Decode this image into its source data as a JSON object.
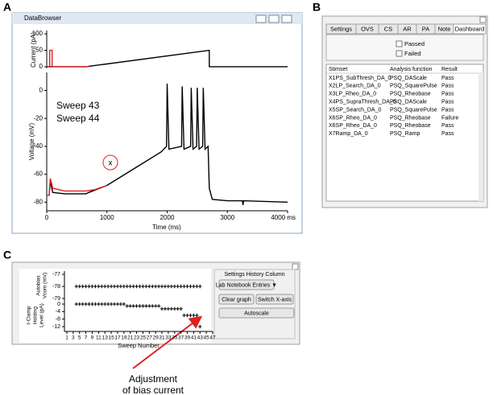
{
  "panel_labels": [
    "A",
    "B",
    "C"
  ],
  "data_browser": {
    "title": "DataBrowser",
    "current_chart": {
      "type": "line",
      "ylabel": "Current (pA)",
      "xlim": [
        0,
        4000
      ],
      "ylim": [
        -5,
        110
      ],
      "yticks": [
        0,
        50,
        100
      ],
      "series": [
        {
          "color": "#000000",
          "x": [
            0,
            650,
            2700,
            2700,
            4000
          ],
          "values": [
            0,
            0,
            50,
            0,
            0
          ]
        },
        {
          "color": "#e02020",
          "x": [
            0,
            50,
            50,
            90,
            90,
            650,
            700
          ],
          "values": [
            0,
            0,
            50,
            50,
            0,
            0,
            1
          ]
        }
      ]
    },
    "voltage_chart": {
      "type": "line",
      "xlabel": "Time (ms)",
      "ylabel": "Voltage (mV)",
      "xlim": [
        0,
        4000
      ],
      "ylim": [
        -85,
        13
      ],
      "xticks": [
        0,
        1000,
        2000,
        3000,
        {
          "value": 4000,
          "label": "4000 ms"
        }
      ],
      "yticks": [
        -80,
        -60,
        -40,
        -20,
        0
      ],
      "annotation": "x",
      "series": [
        {
          "name": "Sweep 44",
          "color": "#000000",
          "x": [
            0,
            40,
            60,
            100,
            300,
            650,
            700,
            1000,
            1300,
            1600,
            1900,
            1990,
            2000,
            2030,
            2240,
            2250,
            2280,
            2390,
            2400,
            2430,
            2490,
            2500,
            2530,
            2590,
            2600,
            2630,
            2680,
            2700,
            2750,
            3000,
            3250,
            3260,
            3270,
            4000
          ],
          "values": [
            -75,
            -75,
            -65,
            -73,
            -74,
            -74,
            -73,
            -68,
            -60,
            -52,
            -44,
            -40,
            5,
            -42,
            -40,
            3,
            -42,
            -40,
            2,
            -42,
            -40,
            2,
            -42,
            -40,
            2,
            -42,
            -40,
            -70,
            -78,
            -79,
            -79,
            -82,
            -79,
            -80
          ]
        },
        {
          "name": "Sweep 43",
          "color": "#e02020",
          "x": [
            0,
            40,
            60,
            100,
            300,
            650,
            800,
            1000
          ],
          "values": [
            -75,
            -75,
            -63,
            -70,
            -72,
            -72,
            -71,
            -68
          ]
        }
      ]
    }
  },
  "dashboard": {
    "tabs": [
      "Settings",
      "OVS",
      "CS",
      "AR",
      "PA",
      "Note",
      "Dashboard"
    ],
    "checkboxes": [
      "Passed",
      "Failed"
    ],
    "table": {
      "header": [
        "Stimset",
        "Analysis function",
        "Result"
      ],
      "rows": [
        {
          "color": "#1a9a1a",
          "cells": [
            "X1PS_SubThresh_DA_0",
            "PSQ_DAScale",
            "Pass"
          ]
        },
        {
          "color": "#1a9a1a",
          "cells": [
            "X2LP_Search_DA_0",
            "PSQ_SquarePulse",
            "Pass"
          ]
        },
        {
          "color": "#1a9a1a",
          "cells": [
            "X3LP_Rheo_DA_0",
            "PSQ_Rheobase",
            "Pass"
          ]
        },
        {
          "color": "#1a9a1a",
          "cells": [
            "X4PS_SupraThresh_DA_0",
            "PSQ_DAScale",
            "Pass"
          ]
        },
        {
          "color": "#1a9a1a",
          "cells": [
            "X5SP_Search_DA_0",
            "PSQ_SquarePulse",
            "Pass"
          ]
        },
        {
          "color": "#e02020",
          "cells": [
            "X6SP_Rheo_DA_0",
            "PSQ_Rheobase",
            "Failure"
          ]
        },
        {
          "color": "#1a9a1a",
          "cells": [
            "X6SP_Rheo_DA_0",
            "PSQ_Rheobase",
            "Pass"
          ]
        },
        {
          "color": "#1a9a1a",
          "cells": [
            "X7Ramp_DA_0",
            "PSQ_Ramp",
            "Pass"
          ]
        }
      ]
    }
  },
  "history": {
    "xlabel": "Sweep Number",
    "xlim": [
      1,
      47
    ],
    "xticks": [
      1,
      3,
      5,
      7,
      9,
      11,
      13,
      15,
      17,
      19,
      21,
      23,
      25,
      27,
      29,
      31,
      33,
      35,
      37,
      39,
      41,
      43,
      45,
      47
    ],
    "x": [
      4,
      5,
      6,
      7,
      8,
      9,
      10,
      11,
      12,
      13,
      14,
      15,
      16,
      17,
      18,
      19,
      20,
      21,
      22,
      23,
      24,
      25,
      26,
      27,
      28,
      29,
      30,
      31,
      32,
      33,
      34,
      35,
      36,
      37,
      38,
      39,
      40,
      41,
      42,
      43
    ],
    "vcom": {
      "type": "scatter",
      "ylabel": [
        "Autobias",
        "Vcom (mV)"
      ],
      "ylim": [
        -79,
        -77
      ],
      "yticks": [
        -77,
        -78,
        -79
      ],
      "values": [
        -78,
        -78,
        -78,
        -78,
        -78,
        -78,
        -78,
        -78,
        -78,
        -78,
        -78,
        -78,
        -78,
        -78,
        -78,
        -78,
        -78,
        -78,
        -78,
        -78,
        -78,
        -78,
        -78,
        -78,
        -78,
        -78,
        -78,
        -78,
        -78,
        -78,
        -78,
        -78,
        -78,
        -78,
        -78,
        -78,
        -78,
        -78,
        -78,
        -78
      ]
    },
    "holding": {
      "type": "scatter",
      "ylabel": [
        "I-Clamp",
        "Holding",
        "Level (pA)"
      ],
      "ylim": [
        -12,
        0
      ],
      "yticks": [
        0,
        -4,
        -8,
        -12
      ],
      "values": [
        0,
        0,
        0,
        0,
        0,
        0,
        0,
        0,
        0,
        0,
        0,
        0,
        0,
        0,
        0,
        0,
        -1,
        -1,
        -1,
        -1,
        -1,
        -1,
        -1,
        -1,
        -1,
        -1,
        -1,
        -2.5,
        -2.5,
        -2.5,
        -2.5,
        -2.5,
        -2.5,
        -2.5,
        -6,
        -6,
        -6,
        -6,
        -6,
        -12
      ]
    },
    "panel_title": "Settings History Column",
    "buttons": [
      "Lab Notebook Entries ▼",
      "Clear graph",
      "Switch X-axis",
      "Autoscale"
    ]
  },
  "annotation": [
    "Adjustment",
    "of bias current"
  ]
}
